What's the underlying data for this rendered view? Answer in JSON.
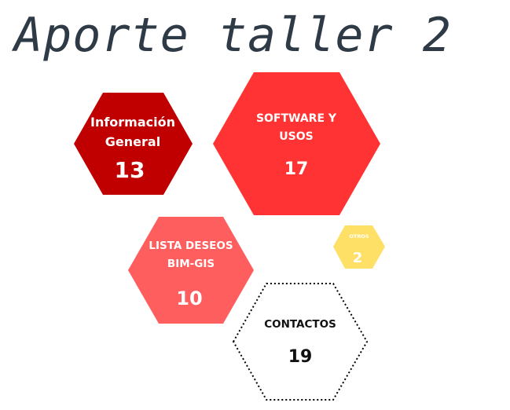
{
  "title": "Aporte taller 2",
  "hexagons": [
    {
      "label_lines": [
        "Información",
        "General"
      ],
      "value": "13",
      "fill": "#c00000",
      "text_color": "#ffffff"
    },
    {
      "label_lines": [
        "SOFTWARE Y",
        "USOS"
      ],
      "value": "17",
      "fill": "#ff3333",
      "text_color": "#ffffff"
    },
    {
      "label_lines": [
        "LISTA DESEOS",
        "BIM-GIS"
      ],
      "value": "10",
      "fill": "#ff5e5e",
      "text_color": "#ffffff"
    },
    {
      "label_lines": [
        "OTROS"
      ],
      "value": "2",
      "fill": "#ffe066",
      "text_color": "#ffffff"
    },
    {
      "label_lines": [
        "CONTACTOS"
      ],
      "value": "19",
      "fill": "#ffffff",
      "text_color": "#111111",
      "stroke": "#000000"
    }
  ]
}
